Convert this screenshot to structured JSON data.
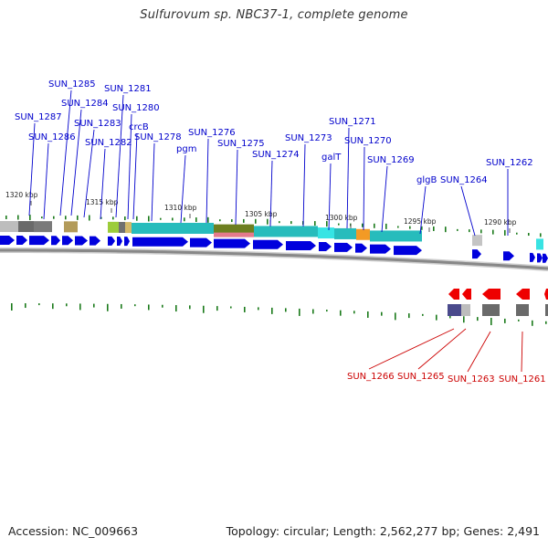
{
  "title": "Sulfurovum sp. NBC37-1, complete genome",
  "footer": {
    "accession": "Accession: NC_009663",
    "summary": "Topology: circular; Length: 2,562,277 bp; Genes: 2,491"
  },
  "colors": {
    "forward_label": "#0000cc",
    "reverse_label": "#cc0000",
    "forward_gene": "#0000dd",
    "reverse_gene": "#ee0000",
    "gc_tick": "#1a7a1a",
    "backbone": "#888888"
  },
  "kbp_ticks": [
    {
      "label": "1320 kbp"
    },
    {
      "label": "1315 kbp"
    },
    {
      "label": "1310 kbp"
    },
    {
      "label": "1305 kbp"
    },
    {
      "label": "1300 kbp"
    },
    {
      "label": "1295 kbp"
    },
    {
      "label": "1290 kbp"
    }
  ],
  "forward_labels": [
    {
      "label": "SUN_1287"
    },
    {
      "label": "SUN_1286"
    },
    {
      "label": "SUN_1285"
    },
    {
      "label": "SUN_1284"
    },
    {
      "label": "SUN_1283"
    },
    {
      "label": "SUN_1282"
    },
    {
      "label": "SUN_1281"
    },
    {
      "label": "SUN_1280"
    },
    {
      "label": "crcB"
    },
    {
      "label": "SUN_1278"
    },
    {
      "label": "pgm"
    },
    {
      "label": "SUN_1276"
    },
    {
      "label": "SUN_1275"
    },
    {
      "label": "SUN_1274"
    },
    {
      "label": "SUN_1273"
    },
    {
      "label": "SUN_1271"
    },
    {
      "label": "galT"
    },
    {
      "label": "SUN_1270"
    },
    {
      "label": "SUN_1269"
    },
    {
      "label": "glgB"
    },
    {
      "label": "SUN_1264"
    },
    {
      "label": "SUN_1262"
    }
  ],
  "reverse_labels": [
    {
      "label": "SUN_1266"
    },
    {
      "label": "SUN_1265"
    },
    {
      "label": "SUN_1263"
    },
    {
      "label": "SUN_1261"
    }
  ]
}
